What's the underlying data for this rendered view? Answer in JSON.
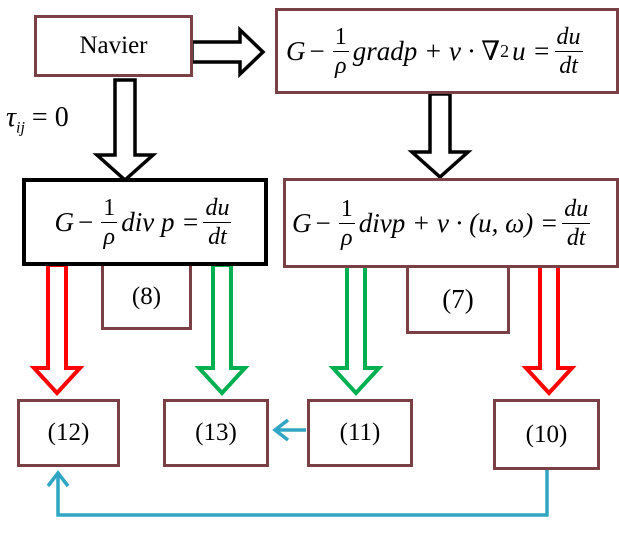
{
  "nodes": {
    "navier": "Navier",
    "eq_top": {
      "g": "G",
      "minus": "−",
      "frac_num": "1",
      "frac_den": "ρ",
      "body": "gradp + ν · ∇",
      "sup": "2",
      "tail": "u =",
      "rhs_num": "du",
      "rhs_den": "dt"
    },
    "eq_left": {
      "g": "G",
      "minus": "−",
      "frac_num": "1",
      "frac_den": "ρ",
      "body": "div p =",
      "rhs_num": "du",
      "rhs_den": "dt"
    },
    "eq_right": {
      "g": "G",
      "minus": "−",
      "frac_num": "1",
      "frac_den": "ρ",
      "body": "divp + ν · (u, ω) =",
      "rhs_num": "du",
      "rhs_den": "dt"
    },
    "tag_8": "(8)",
    "tag_7": "(7)",
    "n12": "(12)",
    "n13": "(13)",
    "n11": "(11)",
    "n10": "(10)"
  },
  "edge_label_tau": {
    "symbol": "τ",
    "sub": "ij",
    "rest": " = 0"
  },
  "colors": {
    "box_border": "#7b3f46",
    "box_border_strong": "#000000",
    "arrow_hollow": "#000000",
    "arrow_red": "#ff0000",
    "arrow_green": "#00b050",
    "arrow_blue": "#31a5c4"
  }
}
